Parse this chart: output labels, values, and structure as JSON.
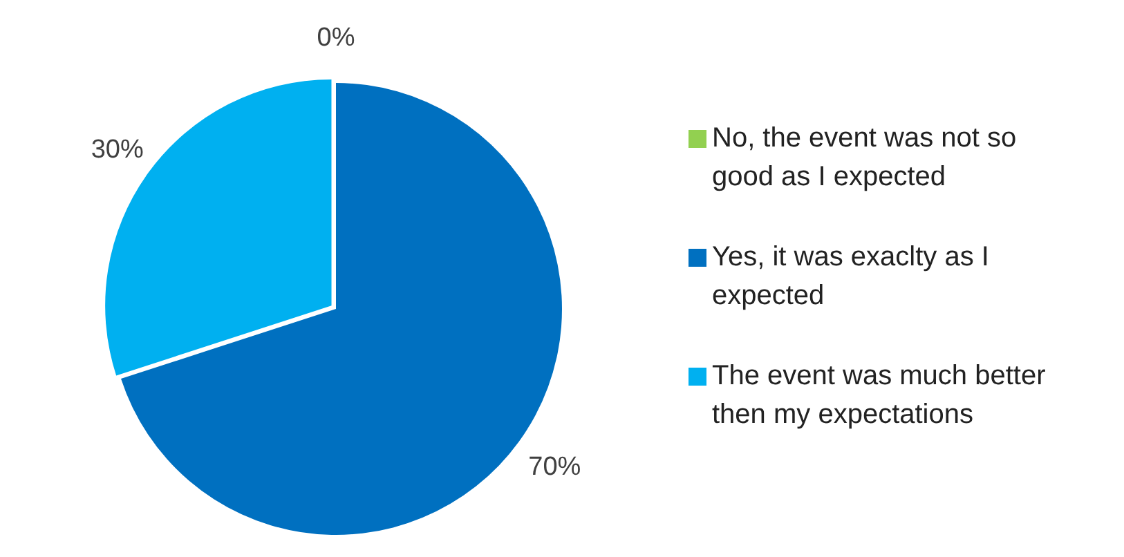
{
  "chart_data": {
    "type": "pie",
    "categories": [
      "No, the event was not so good as I expected",
      "Yes, it was exaclty as I expected",
      "The event was much better then my expectations"
    ],
    "values": [
      0,
      70,
      30
    ],
    "colors": [
      "#92d050",
      "#0070c0",
      "#00b0f0"
    ],
    "value_labels": [
      "0%",
      "70%",
      "30%"
    ],
    "legend": "right"
  }
}
